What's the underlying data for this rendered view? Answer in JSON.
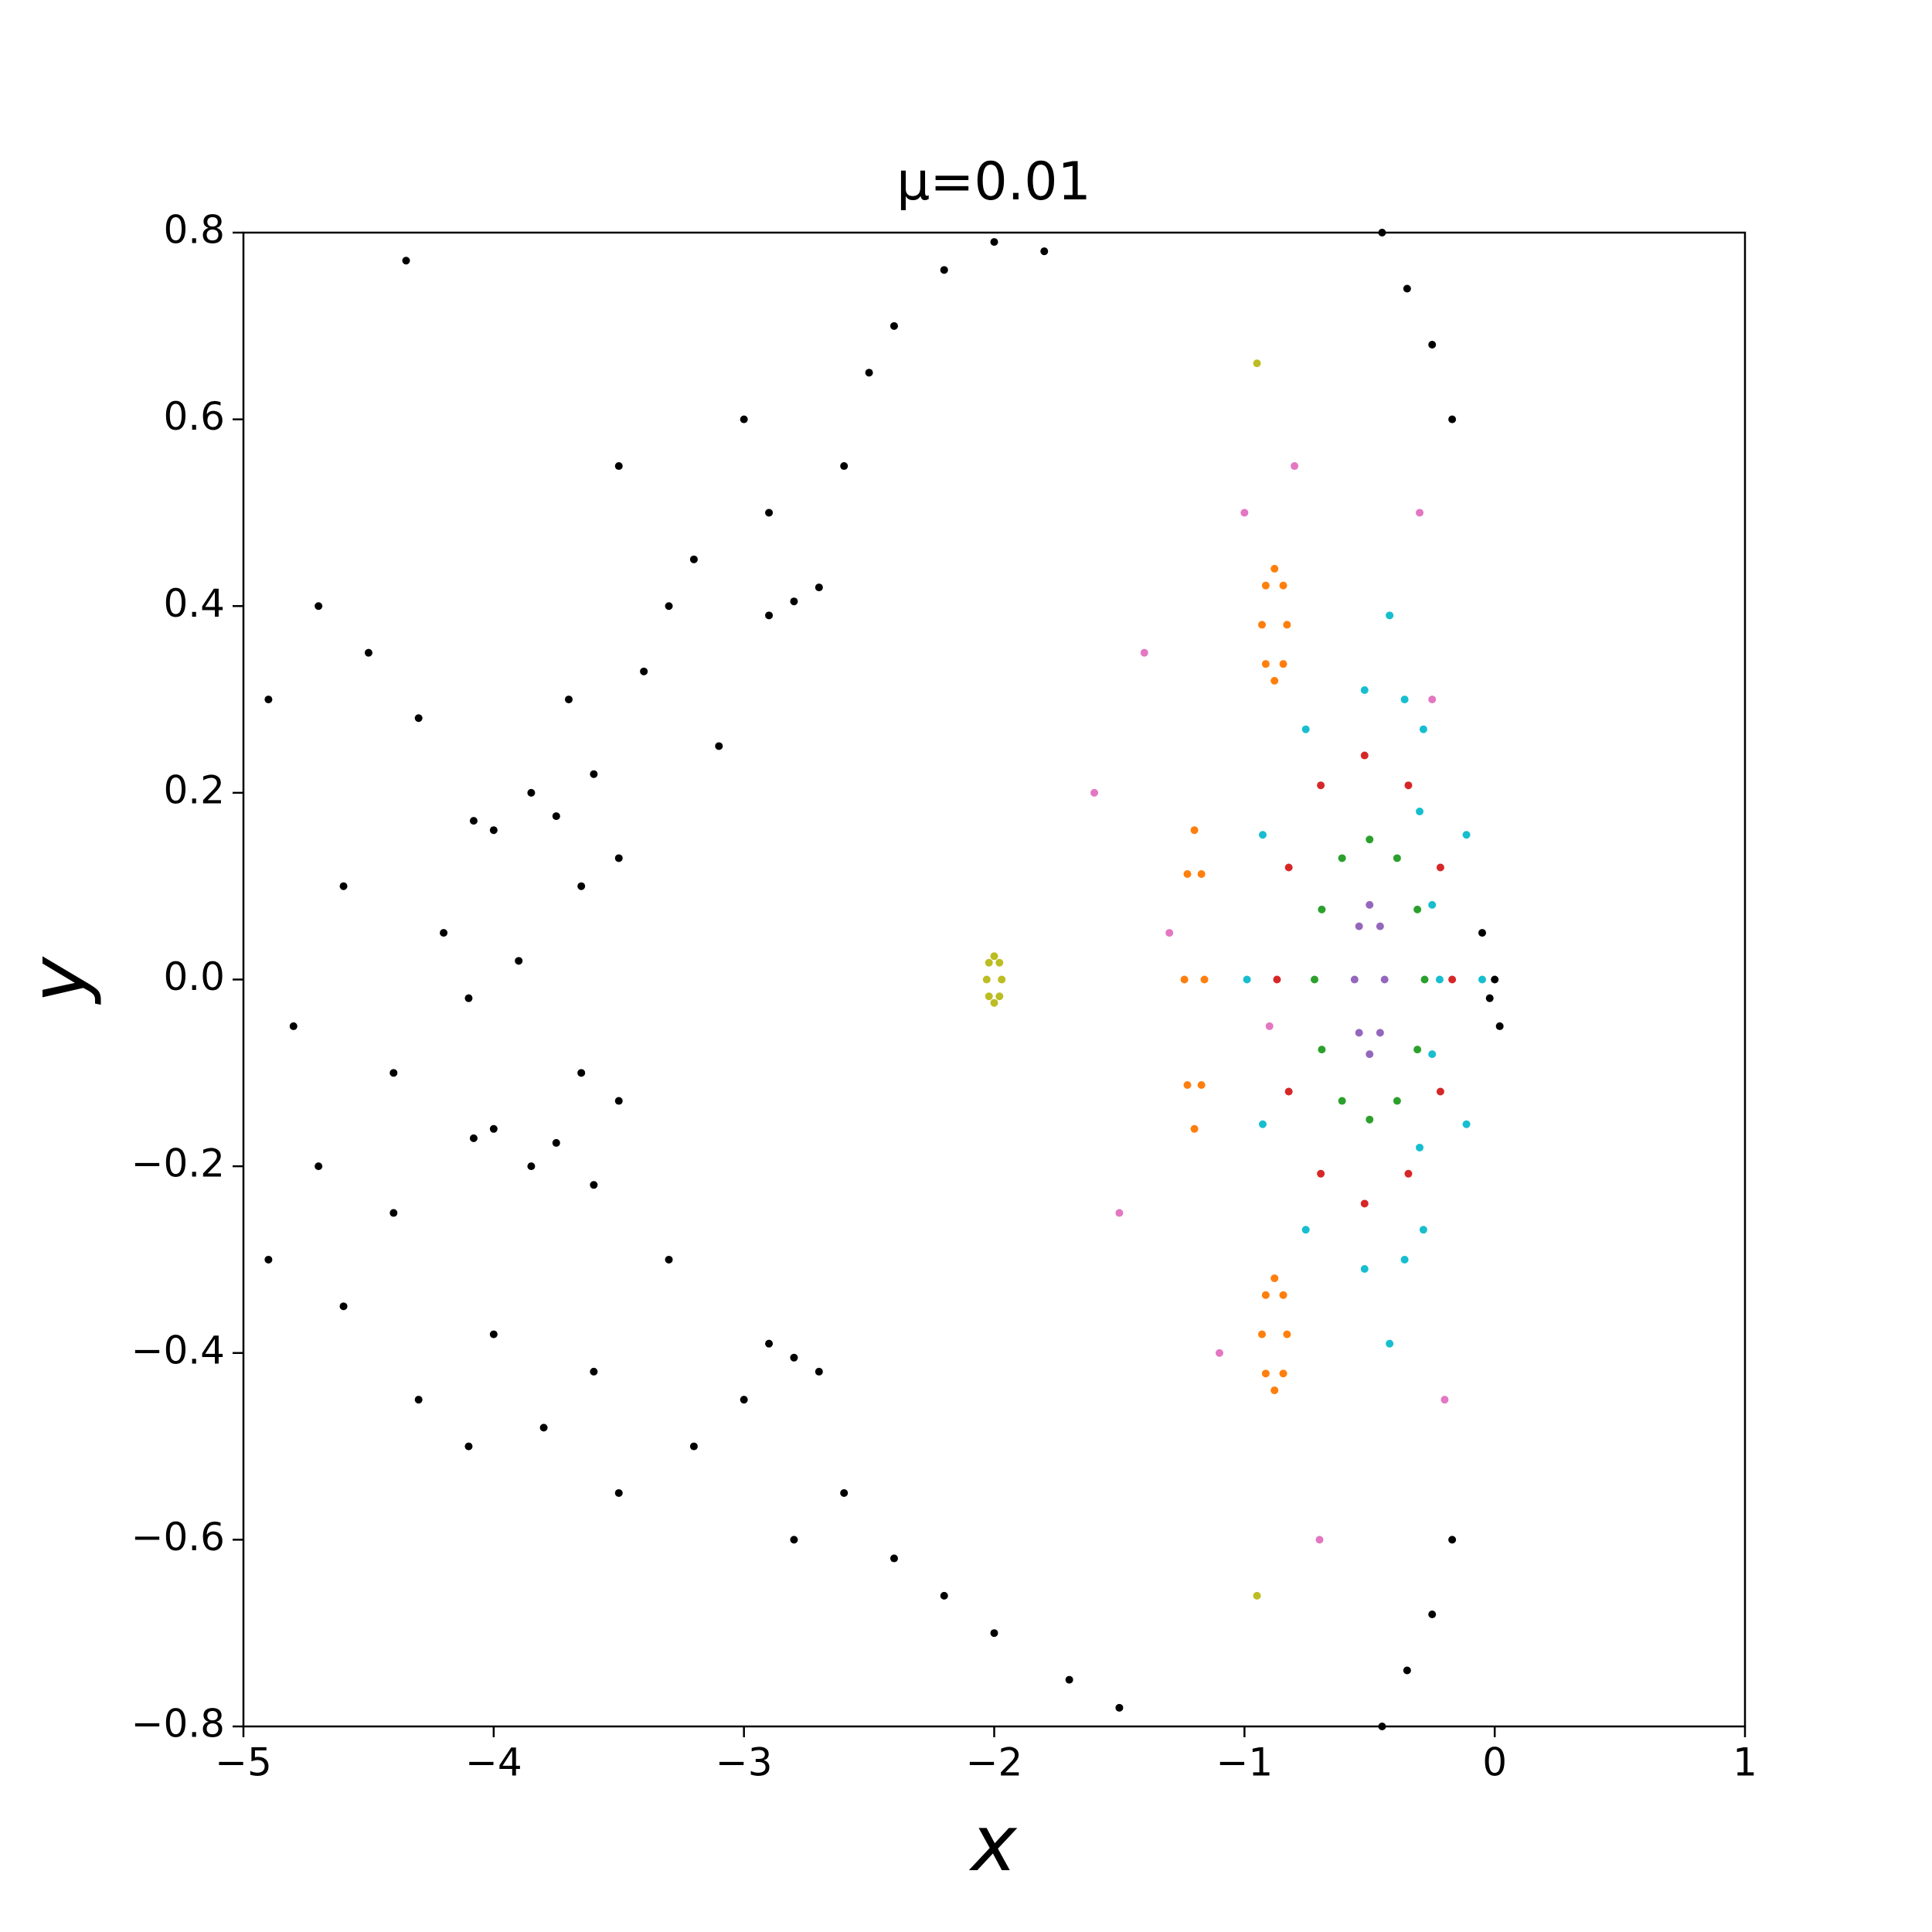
{
  "chart_data": {
    "type": "scatter",
    "title": "μ=0.01",
    "x_label": "x",
    "y_label": "y",
    "xlim": [
      -5,
      1
    ],
    "ylim": [
      -0.8,
      0.8
    ],
    "xticks": [
      {
        "value": -5,
        "label": "−5"
      },
      {
        "value": -4,
        "label": "−4"
      },
      {
        "value": -3,
        "label": "−3"
      },
      {
        "value": -2,
        "label": "−2"
      },
      {
        "value": -1,
        "label": "−1"
      },
      0,
      1
    ],
    "yticks": [
      {
        "value": -0.8,
        "label": "−0.8"
      },
      {
        "value": -0.6,
        "label": "−0.6"
      },
      {
        "value": -0.4,
        "label": "−0.4"
      },
      {
        "value": -0.2,
        "label": "−0.2"
      },
      {
        "value": 0,
        "label": "0.0"
      },
      0.2,
      0.4,
      0.6,
      0.8
    ],
    "grid": false,
    "series": [
      {
        "color": "#000000",
        "x": [
          -4.9,
          -4.7,
          -4.5,
          -4.3,
          -4.6,
          -4.2,
          -4.8,
          -4.4,
          -4.1,
          -3.7,
          -3.4,
          -3.2,
          -3.5,
          -3.0,
          -3.3,
          -2.6,
          -2.4,
          -2.2,
          -2.0,
          -1.8,
          -2.5,
          -2.9,
          -3.1,
          -4.9,
          -4.6,
          -4.3,
          -4.0,
          -3.6,
          -3.3,
          -4.7,
          -4.4,
          -4.1,
          -3.8,
          -3.5,
          -3.2,
          -2.8,
          -2.4,
          -2.0,
          -1.7,
          -1.5,
          -2.2,
          -2.6,
          -3.0,
          -4.35,
          -3.9,
          -0.05,
          0.0,
          0.02,
          -0.02
        ],
        "y": [
          0.3,
          0.4,
          0.35,
          0.28,
          0.1,
          0.05,
          -0.05,
          -0.1,
          -0.02,
          0.3,
          0.33,
          0.45,
          0.55,
          0.6,
          0.4,
          0.55,
          0.7,
          0.76,
          0.79,
          0.78,
          0.65,
          0.5,
          0.25,
          -0.3,
          -0.35,
          -0.45,
          -0.38,
          -0.42,
          -0.3,
          -0.2,
          -0.25,
          -0.5,
          -0.48,
          -0.55,
          -0.5,
          -0.6,
          -0.62,
          -0.7,
          -0.75,
          -0.78,
          -0.66,
          -0.55,
          -0.45,
          0.77,
          0.02,
          0.05,
          0,
          -0.05,
          -0.02
        ]
      },
      {
        "color": "#000000",
        "x": [
          -4.08,
          -3.85,
          -3.6,
          -3.75,
          -4.0,
          -4.08,
          -3.85,
          -3.6,
          -3.75,
          -4.0,
          -3.65,
          -3.5,
          -3.65,
          -3.5,
          -2.9,
          -2.7,
          -2.8,
          -2.9,
          -2.7,
          -2.8,
          -0.45,
          -0.35,
          -0.25,
          -0.17,
          -0.45,
          -0.35,
          -0.25,
          -0.17
        ],
        "y": [
          0.17,
          0.2,
          0.22,
          0.175,
          0.16,
          -0.17,
          -0.2,
          -0.22,
          -0.175,
          -0.16,
          0.1,
          0.13,
          -0.1,
          -0.13,
          0.39,
          0.42,
          0.405,
          -0.39,
          -0.42,
          -0.405,
          0.8,
          0.74,
          0.68,
          0.6,
          -0.8,
          -0.74,
          -0.68,
          -0.6
        ]
      },
      {
        "color": "#e377c2",
        "x": [
          -1.6,
          -1.4,
          -1.0,
          -0.8,
          -0.3,
          -0.2,
          -1.5,
          -1.1,
          -0.7,
          -0.25,
          -1.3,
          -0.9
        ],
        "y": [
          0.2,
          0.35,
          0.5,
          0.55,
          0.5,
          -0.45,
          -0.25,
          -0.4,
          -0.6,
          0.3,
          0.05,
          -0.05
        ]
      },
      {
        "color": "#17becf",
        "x": [
          -0.05,
          -0.113,
          -0.285,
          -0.52,
          -0.755,
          -0.927,
          -0.99,
          -0.927,
          -0.755,
          -0.52,
          -0.285,
          -0.113,
          -0.42,
          -0.36,
          -0.3,
          -0.25,
          -0.22,
          -0.25,
          -0.3,
          -0.36,
          -0.42
        ],
        "y": [
          0,
          0.155,
          0.268,
          0.31,
          0.268,
          0.155,
          0,
          -0.155,
          -0.268,
          -0.31,
          -0.268,
          -0.155,
          0.39,
          0.3,
          0.18,
          0.08,
          0,
          -0.08,
          -0.18,
          -0.3,
          -0.39
        ]
      },
      {
        "color": "#d62728",
        "x": [
          -0.17,
          -0.217,
          -0.345,
          -0.52,
          -0.695,
          -0.823,
          -0.87,
          -0.823,
          -0.695,
          -0.52,
          -0.345,
          -0.217
        ],
        "y": [
          0,
          0.12,
          0.208,
          0.24,
          0.208,
          0.12,
          0,
          -0.12,
          -0.208,
          -0.24,
          -0.208,
          -0.12
        ]
      },
      {
        "color": "#2ca02c",
        "x": [
          -0.28,
          -0.309,
          -0.39,
          -0.5,
          -0.61,
          -0.691,
          -0.72,
          -0.691,
          -0.61,
          -0.5,
          -0.39,
          -0.309
        ],
        "y": [
          0,
          0.075,
          0.13,
          0.15,
          0.13,
          0.075,
          0,
          -0.075,
          -0.13,
          -0.15,
          -0.13,
          -0.075
        ]
      },
      {
        "color": "#9467bd",
        "x": [
          -0.44,
          -0.458,
          -0.5,
          -0.542,
          -0.56,
          -0.542,
          -0.5,
          -0.458
        ],
        "y": [
          0,
          0.057,
          0.08,
          0.057,
          0,
          -0.057,
          -0.08,
          -0.057
        ]
      },
      {
        "color": "#ff7f0e",
        "x": [
          -1.16,
          -1.172,
          -1.2,
          -1.228,
          -1.24,
          -1.228,
          -1.2,
          -1.172,
          -0.83,
          -0.845,
          -0.88,
          -0.915,
          -0.93,
          -0.915,
          -0.88,
          -0.845,
          -0.83,
          -0.845,
          -0.88,
          -0.915,
          -0.93,
          -0.915,
          -0.88,
          -0.845
        ],
        "y": [
          0,
          0.113,
          0.16,
          0.113,
          0,
          -0.113,
          -0.16,
          -0.113,
          0.38,
          0.422,
          0.44,
          0.422,
          0.38,
          0.338,
          0.32,
          0.338,
          -0.38,
          -0.338,
          -0.32,
          -0.338,
          -0.38,
          -0.422,
          -0.44,
          -0.422
        ]
      },
      {
        "color": "#bcbd22",
        "x": [
          -1.97,
          -1.979,
          -2,
          -2.021,
          -2.03,
          -2.021,
          -2,
          -1.979,
          -0.95,
          -0.95
        ],
        "y": [
          0,
          0.018,
          0.025,
          0.018,
          0,
          -0.018,
          -0.025,
          -0.018,
          0.66,
          -0.66
        ]
      }
    ]
  }
}
